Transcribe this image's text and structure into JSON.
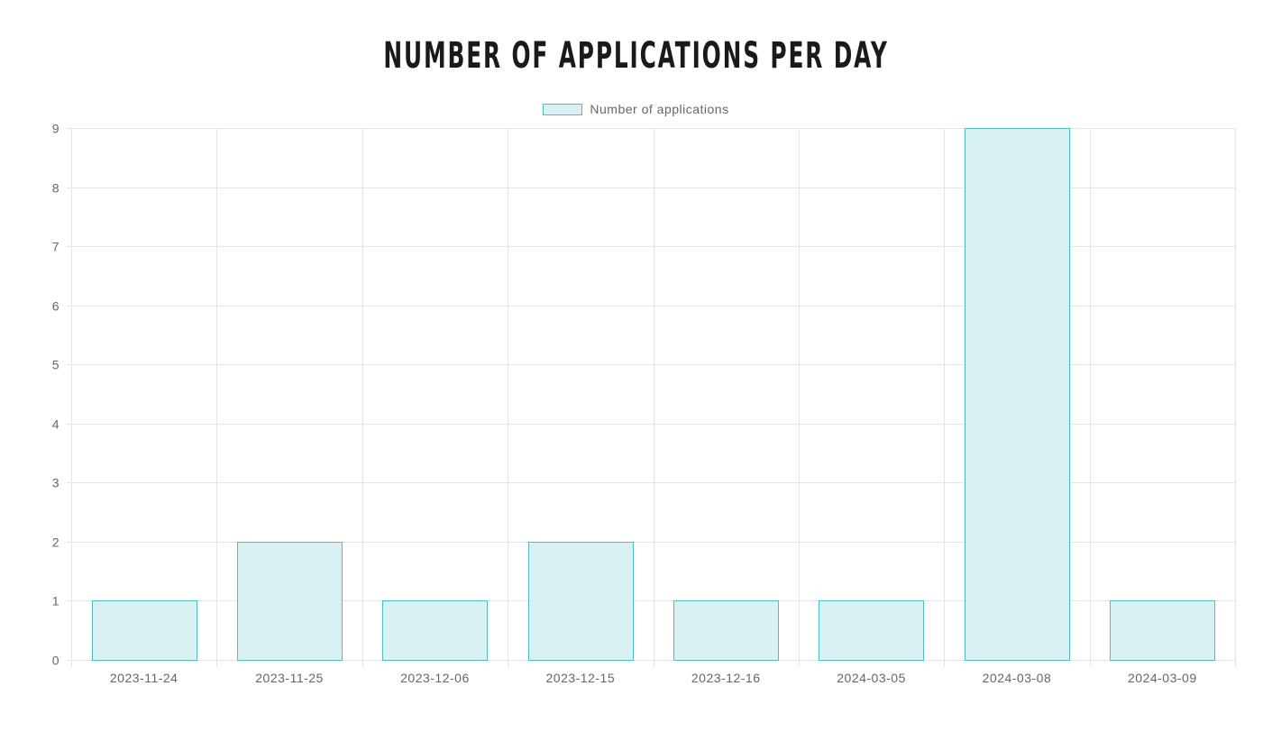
{
  "chart_data": {
    "type": "bar",
    "title": "Number of applications per day",
    "categories": [
      "2023-11-24",
      "2023-11-25",
      "2023-12-06",
      "2023-12-15",
      "2023-12-16",
      "2024-03-05",
      "2024-03-08",
      "2024-03-09"
    ],
    "series": [
      {
        "name": "Number of applications",
        "values": [
          1,
          2,
          1,
          2,
          1,
          1,
          9,
          1
        ]
      }
    ],
    "xlabel": "",
    "ylabel": "",
    "ylim": [
      0,
      9
    ],
    "yticks": [
      0,
      1,
      2,
      3,
      4,
      5,
      6,
      7,
      8,
      9
    ],
    "grid": true,
    "legend_position": "top",
    "colors": {
      "bar_fill": "#d9f1f3",
      "bar_border": "#4bc0c0",
      "grid": "#e5e5e5",
      "axis_text": "#666666"
    }
  }
}
